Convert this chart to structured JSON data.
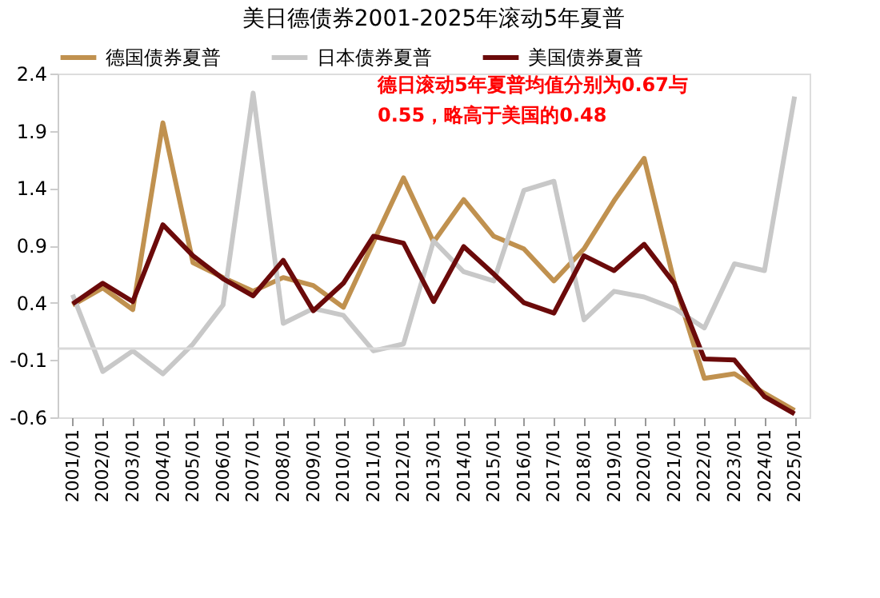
{
  "chart_data": {
    "type": "line",
    "title": "美日德债券2001-2025年滚动5年夏普",
    "categories": [
      "2001/01",
      "2002/01",
      "2003/01",
      "2004/01",
      "2005/01",
      "2006/01",
      "2007/01",
      "2008/01",
      "2009/01",
      "2010/01",
      "2011/01",
      "2012/01",
      "2013/01",
      "2014/01",
      "2015/01",
      "2016/01",
      "2017/01",
      "2018/01",
      "2019/01",
      "2020/01",
      "2021/01",
      "2022/01",
      "2023/01",
      "2024/01",
      "2025/01"
    ],
    "series": [
      {
        "name": "德国债券夏普",
        "color": "#c0914f",
        "values": [
          0.38,
          0.53,
          0.34,
          1.97,
          0.75,
          0.62,
          0.5,
          0.62,
          0.55,
          0.36,
          0.93,
          1.49,
          0.93,
          1.3,
          0.98,
          0.87,
          0.59,
          0.87,
          1.29,
          1.66,
          0.58,
          -0.26,
          -0.22,
          -0.39,
          -0.54
        ]
      },
      {
        "name": "日本债券夏普",
        "color": "#c8c8c8",
        "values": [
          0.47,
          -0.2,
          -0.02,
          -0.22,
          0.04,
          0.38,
          2.23,
          0.22,
          0.35,
          0.29,
          -0.02,
          0.04,
          0.94,
          0.67,
          0.59,
          1.38,
          1.46,
          0.25,
          0.5,
          0.45,
          0.35,
          0.18,
          0.74,
          0.68,
          2.2
        ]
      },
      {
        "name": "美国债券夏普",
        "color": "#6b0a0a",
        "values": [
          0.39,
          0.57,
          0.41,
          1.08,
          0.81,
          0.61,
          0.46,
          0.77,
          0.33,
          0.57,
          0.98,
          0.92,
          0.41,
          0.89,
          0.65,
          0.4,
          0.31,
          0.81,
          0.68,
          0.91,
          0.57,
          -0.09,
          -0.1,
          -0.42,
          -0.57
        ]
      }
    ],
    "ylim": [
      -0.6,
      2.4
    ],
    "yticks": [
      -0.6,
      -0.1,
      0.4,
      0.9,
      1.4,
      1.9,
      2.4
    ],
    "ref_lines": [
      {
        "axis": "y",
        "value": 0,
        "color": "#d9d9d9"
      }
    ],
    "annotations": [
      "德日滚动5年夏普均值分别为0.67与0.55，略高于美国的0.48"
    ],
    "legend": "top",
    "grid": false,
    "marker": "none",
    "line_style": "solid"
  }
}
